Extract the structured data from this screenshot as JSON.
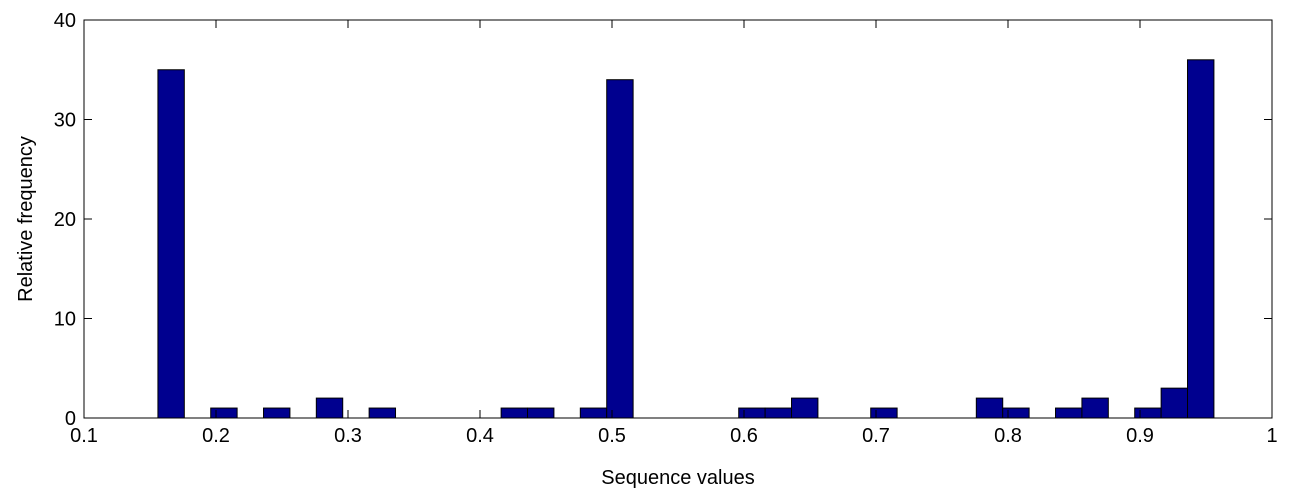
{
  "chart_data": {
    "type": "bar",
    "title": "",
    "xlabel": "Sequence values",
    "ylabel": "Relative frequency",
    "xlim": [
      0.1,
      1
    ],
    "ylim": [
      0,
      40
    ],
    "xticks": [
      0.1,
      0.2,
      0.3,
      0.4,
      0.5,
      0.6,
      0.7,
      0.8,
      0.9,
      1
    ],
    "xtick_labels": [
      "0.1",
      "0.2",
      "0.3",
      "0.4",
      "0.5",
      "0.6",
      "0.7",
      "0.8",
      "0.9",
      "1"
    ],
    "yticks": [
      0,
      10,
      20,
      30,
      40
    ],
    "ytick_labels": [
      "0",
      "10",
      "20",
      "30",
      "40"
    ],
    "bin_width": 0.02,
    "bins": [
      {
        "x": 0.166,
        "value": 35
      },
      {
        "x": 0.206,
        "value": 1
      },
      {
        "x": 0.246,
        "value": 1
      },
      {
        "x": 0.286,
        "value": 2
      },
      {
        "x": 0.326,
        "value": 1
      },
      {
        "x": 0.426,
        "value": 1
      },
      {
        "x": 0.446,
        "value": 1
      },
      {
        "x": 0.486,
        "value": 1
      },
      {
        "x": 0.506,
        "value": 34
      },
      {
        "x": 0.606,
        "value": 1
      },
      {
        "x": 0.626,
        "value": 1
      },
      {
        "x": 0.646,
        "value": 2
      },
      {
        "x": 0.706,
        "value": 1
      },
      {
        "x": 0.786,
        "value": 2
      },
      {
        "x": 0.806,
        "value": 1
      },
      {
        "x": 0.846,
        "value": 1
      },
      {
        "x": 0.866,
        "value": 2
      },
      {
        "x": 0.906,
        "value": 1
      },
      {
        "x": 0.926,
        "value": 3
      },
      {
        "x": 0.946,
        "value": 36
      }
    ],
    "grid": false,
    "colors": {
      "bar_fill": "#00008f",
      "bar_edge": "#000000",
      "axes": "#000000"
    }
  }
}
